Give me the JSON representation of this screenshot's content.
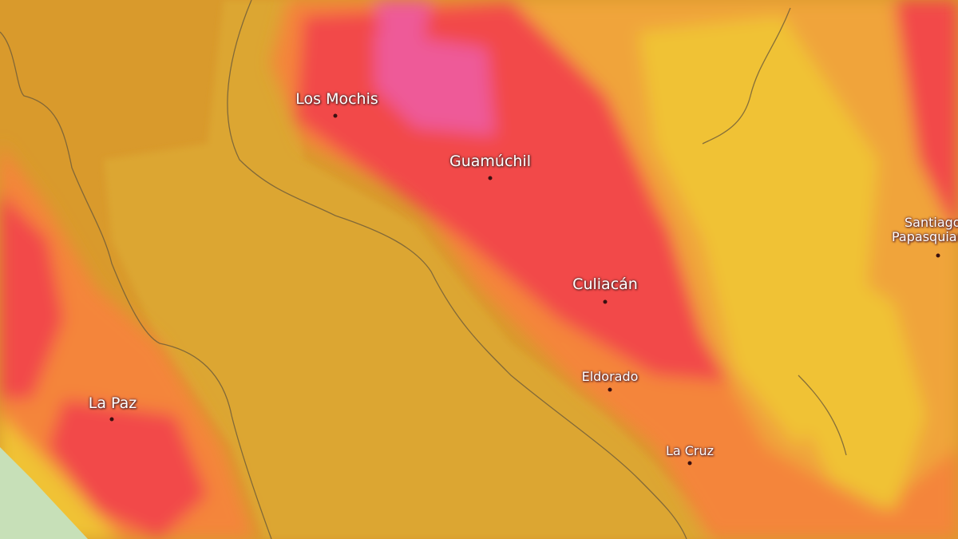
{
  "map": {
    "type": "temperature heat map",
    "colors": {
      "ocean": "#d99a2c",
      "gulf": "#dca633",
      "hot": "#f24a48",
      "hottest": "#ee5a98",
      "warm": "#f4853a",
      "mild": "#f0c236",
      "cool": "#c7e0b8",
      "border": "#6b5a3a"
    },
    "cities": [
      {
        "name": "Los Mochis"
      },
      {
        "name": "Guamúchil"
      },
      {
        "name": "Culiacán"
      },
      {
        "name": "Eldorado"
      },
      {
        "name": "La Cruz"
      },
      {
        "name": "La Paz"
      },
      {
        "name": "Santiago",
        "name2": "Papasquiaro"
      }
    ]
  }
}
